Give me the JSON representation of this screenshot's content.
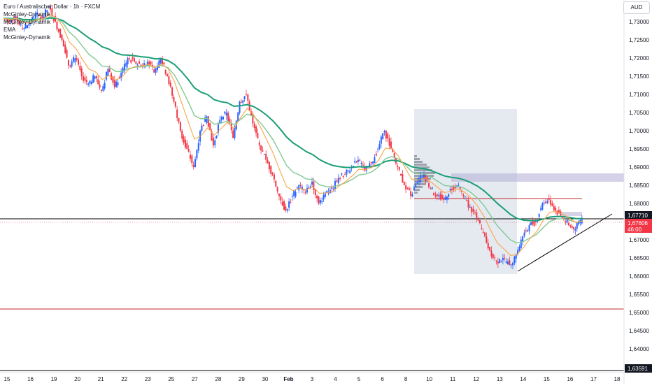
{
  "header": {
    "symbol_title": "Euro / Australischer Dollar · 1h · FXCM",
    "indicators": [
      "McGinley-Dynamik",
      "McGinley-Dynamik",
      "EMA",
      "McGinley-Dynamik"
    ],
    "currency": "AUD"
  },
  "chart_data": {
    "type": "candlestick",
    "title": "Euro / Australischer Dollar · 1h · FXCM",
    "x_tick_labels": [
      "15",
      "16",
      "19",
      "20",
      "21",
      "22",
      "23",
      "25",
      "27",
      "28",
      "29",
      "30",
      "Feb",
      "3",
      "4",
      "5",
      "6",
      "8",
      "10",
      "11",
      "12",
      "13",
      "14",
      "15",
      "16",
      "17",
      "18"
    ],
    "y_tick_labels": [
      "1,73000",
      "1,72500",
      "1,72000",
      "1,71500",
      "1,71000",
      "1,70500",
      "1,70000",
      "1,69500",
      "1,69000",
      "1,68500",
      "1,68000",
      "1,67500",
      "1,67000",
      "1,66500",
      "1,66000",
      "1,65500",
      "1,65000",
      "1,64500",
      "1,64000"
    ],
    "ylim": [
      1.634,
      1.736
    ],
    "price_labels": {
      "horizontal_level": "1,67710",
      "current_price": "1,67606",
      "countdown": "46:00",
      "bottom_level": "1,63591"
    },
    "price_path": [
      1.731,
      1.73,
      1.7315,
      1.728,
      1.7295,
      1.732,
      1.731,
      1.734,
      1.73,
      1.725,
      1.718,
      1.72,
      1.715,
      1.713,
      1.715,
      1.711,
      1.717,
      1.712,
      1.716,
      1.72,
      1.719,
      1.718,
      1.719,
      1.716,
      1.72,
      1.715,
      1.708,
      1.7,
      1.695,
      1.69,
      1.7,
      1.704,
      1.696,
      1.703,
      1.705,
      1.698,
      1.708,
      1.71,
      1.702,
      1.696,
      1.692,
      1.688,
      1.682,
      1.678,
      1.682,
      1.685,
      1.683,
      1.686,
      1.68,
      1.683,
      1.684,
      1.687,
      1.688,
      1.69,
      1.692,
      1.689,
      1.691,
      1.695,
      1.7,
      1.695,
      1.69,
      1.685,
      1.682,
      1.686,
      1.688,
      1.684,
      1.682,
      1.681,
      1.684,
      1.685,
      1.682,
      1.679,
      1.676,
      1.672,
      1.667,
      1.664,
      1.665,
      1.663,
      1.666,
      1.671,
      1.674,
      1.675,
      1.68,
      1.681,
      1.678,
      1.676,
      1.674,
      1.673,
      1.676
    ],
    "annotations": {
      "bottom_support_line_label": "1,63591"
    },
    "indicator_series": [
      "EMA",
      "McGinley-Dynamik"
    ],
    "grid": false,
    "colors": {
      "up": "#2962ff",
      "down": "#f23645",
      "ema": "#f7a74a",
      "mcginley_slow": "#1b9e77",
      "mcginley_fast": "#81c995",
      "zone": "#cfd8e3",
      "supply": "#b7b2d9",
      "level_line": "#000000",
      "support_red": "#c62828",
      "current_label_bg": "#f23645"
    }
  }
}
